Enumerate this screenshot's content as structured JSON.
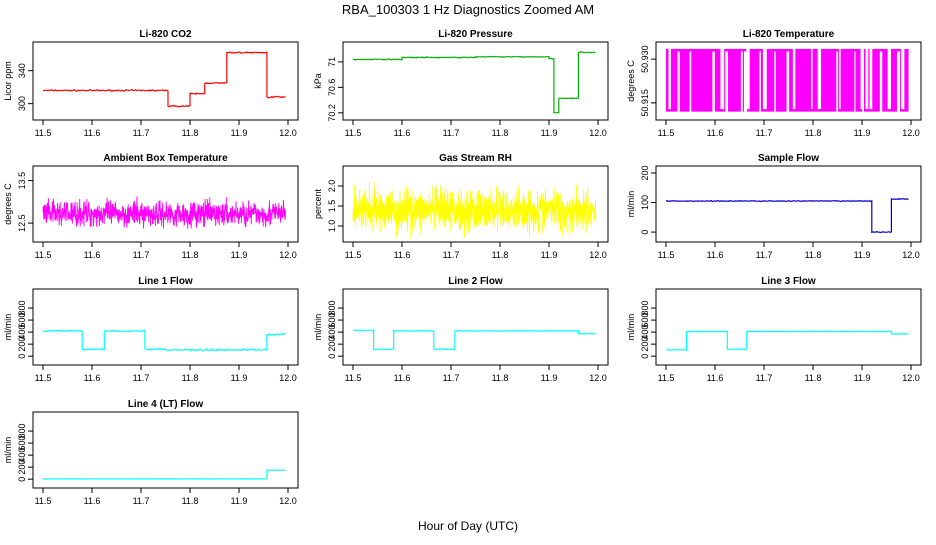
{
  "figure": {
    "title": "RBA_100303  1 Hz Diagnostics Zoomed AM",
    "xlabel": "Hour of Day (UTC)"
  },
  "chart_data": [
    {
      "type": "line",
      "title": "Li-820 CO2",
      "ylabel": "Licor ppm",
      "color": "#ff0000",
      "xlim": [
        11.5,
        12.0
      ],
      "xticks": [
        11.5,
        11.6,
        11.7,
        11.8,
        11.9,
        12.0
      ],
      "ylim": [
        285,
        370
      ],
      "yticks": [
        300,
        340
      ],
      "steps": [
        [
          11.5,
          316
        ],
        [
          11.755,
          297
        ],
        [
          11.8,
          312
        ],
        [
          11.83,
          325
        ],
        [
          11.875,
          362
        ],
        [
          11.957,
          308
        ],
        [
          11.995,
          308
        ]
      ],
      "noise": 1.2
    },
    {
      "type": "line",
      "title": "Li-820 Pressure",
      "ylabel": "kPa",
      "color": "#00b000",
      "xlim": [
        11.5,
        12.0
      ],
      "xticks": [
        11.5,
        11.6,
        11.7,
        11.8,
        11.9,
        12.0
      ],
      "ylim": [
        70.15,
        71.25
      ],
      "yticks": [
        70.2,
        70.6,
        71.0
      ],
      "steps": [
        [
          11.5,
          71.04
        ],
        [
          11.6,
          71.07
        ],
        [
          11.75,
          71.08
        ],
        [
          11.9,
          71.05
        ],
        [
          11.91,
          70.2
        ],
        [
          11.92,
          70.43
        ],
        [
          11.96,
          71.15
        ],
        [
          11.995,
          71.15
        ]
      ],
      "noise": 0.01
    },
    {
      "type": "band",
      "title": "Li-820 Temperature",
      "ylabel": "degrees C",
      "color": "#ff00ff",
      "xlim": [
        11.5,
        12.0
      ],
      "xticks": [
        11.5,
        11.6,
        11.7,
        11.8,
        11.9,
        12.0
      ],
      "ylim": [
        50.9105,
        50.9345
      ],
      "yticks": [
        50.915,
        50.93
      ],
      "ytick_labels": [
        "50.915",
        "50.930"
      ],
      "band": [
        50.912,
        50.9335
      ],
      "xend": 11.995
    },
    {
      "type": "noise",
      "title": "Ambient Box Temperature",
      "ylabel": "degrees C",
      "color": "#ff00ff",
      "xlim": [
        11.5,
        12.0
      ],
      "xticks": [
        11.5,
        11.6,
        11.7,
        11.8,
        11.9,
        12.0
      ],
      "ylim": [
        12.15,
        13.75
      ],
      "yticks": [
        12.5,
        13.5
      ],
      "mean": 12.72,
      "spread": 0.45,
      "xend": 11.995
    },
    {
      "type": "noise",
      "title": "Gas Stream RH",
      "ylabel": "percent",
      "color": "#ffff00",
      "xlim": [
        11.5,
        12.0
      ],
      "xticks": [
        11.5,
        11.6,
        11.7,
        11.8,
        11.9,
        12.0
      ],
      "ylim": [
        0.7,
        2.4
      ],
      "yticks": [
        1.0,
        1.5,
        2.0
      ],
      "ytick_labels": [
        "1.0",
        "1.5",
        "2.0"
      ],
      "mean": 1.4,
      "spread": 0.8,
      "xend": 11.995
    },
    {
      "type": "line",
      "title": "Sample Flow",
      "ylabel": "ml/min",
      "color": "#0000cc",
      "xlim": [
        11.5,
        12.0
      ],
      "xticks": [
        11.5,
        11.6,
        11.7,
        11.8,
        11.9,
        12.0
      ],
      "ylim": [
        -20,
        210
      ],
      "yticks": [
        0,
        100,
        200
      ],
      "steps": [
        [
          11.5,
          105
        ],
        [
          11.92,
          0
        ],
        [
          11.96,
          112
        ],
        [
          11.995,
          112
        ]
      ],
      "noise": 2
    },
    {
      "type": "line",
      "title": "Line 1 Flow",
      "ylabel": "ml/min",
      "color": "#00ffff",
      "xlim": [
        11.5,
        12.0
      ],
      "xticks": [
        11.5,
        11.6,
        11.7,
        11.8,
        11.9,
        12.0
      ],
      "ylim": [
        -80,
        1050
      ],
      "yticks": [
        0,
        200,
        400,
        600,
        800
      ],
      "steps": [
        [
          11.5,
          420
        ],
        [
          11.58,
          115
        ],
        [
          11.625,
          420
        ],
        [
          11.708,
          115
        ],
        [
          11.75,
          105
        ],
        [
          11.957,
          360
        ],
        [
          11.995,
          360
        ]
      ],
      "noise": 20
    },
    {
      "type": "line",
      "title": "Line 2 Flow",
      "ylabel": "ml/min",
      "color": "#00ffff",
      "xlim": [
        11.5,
        12.0
      ],
      "xticks": [
        11.5,
        11.6,
        11.7,
        11.8,
        11.9,
        12.0
      ],
      "ylim": [
        -80,
        1050
      ],
      "yticks": [
        0,
        200,
        400,
        600,
        800
      ],
      "steps": [
        [
          11.5,
          430
        ],
        [
          11.542,
          115
        ],
        [
          11.583,
          420
        ],
        [
          11.665,
          115
        ],
        [
          11.708,
          420
        ],
        [
          11.96,
          375
        ],
        [
          11.995,
          375
        ]
      ],
      "noise": 8
    },
    {
      "type": "line",
      "title": "Line 3 Flow",
      "ylabel": "ml/min",
      "color": "#00ffff",
      "xlim": [
        11.5,
        12.0
      ],
      "xticks": [
        11.5,
        11.6,
        11.7,
        11.8,
        11.9,
        12.0
      ],
      "ylim": [
        -80,
        1050
      ],
      "yticks": [
        0,
        200,
        400,
        600,
        800
      ],
      "steps": [
        [
          11.5,
          105
        ],
        [
          11.542,
          410
        ],
        [
          11.625,
          115
        ],
        [
          11.665,
          410
        ],
        [
          11.96,
          370
        ],
        [
          11.995,
          370
        ]
      ],
      "noise": 8
    },
    {
      "type": "line",
      "title": "Line 4 (LT) Flow",
      "ylabel": "ml/min",
      "color": "#00ffff",
      "xlim": [
        11.5,
        12.0
      ],
      "xticks": [
        11.5,
        11.6,
        11.7,
        11.8,
        11.9,
        12.0
      ],
      "ylim": [
        -80,
        1050
      ],
      "yticks": [
        0,
        200,
        400,
        600,
        800
      ],
      "steps": [
        [
          11.5,
          5
        ],
        [
          11.957,
          150
        ],
        [
          11.995,
          150
        ]
      ],
      "noise": 3
    }
  ]
}
